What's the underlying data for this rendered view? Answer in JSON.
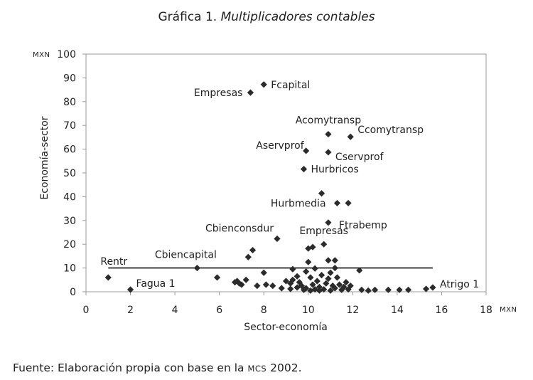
{
  "chart_data": {
    "type": "scatter",
    "title_prefix": "Gráfica 1.",
    "title_italic": "Multiplicadores contables",
    "xlabel": "Sector-economía",
    "ylabel": "Economía-sector",
    "x_unit": "MXN",
    "y_unit": "MXN",
    "xlim": [
      0,
      18
    ],
    "ylim": [
      0,
      100
    ],
    "x_ticks": [
      "0",
      "2",
      "4",
      "6",
      "8",
      "10",
      "12",
      "14",
      "16",
      "18"
    ],
    "y_ticks": [
      "0",
      "10",
      "20",
      "30",
      "40",
      "50",
      "60",
      "70",
      "80",
      "90",
      "100"
    ],
    "grid": false,
    "reference_line": {
      "y": 10,
      "x_from": 1,
      "x_to": 15.6
    },
    "labeled_points": [
      {
        "label": "Fcapital",
        "x": 8.0,
        "y": 87.2
      },
      {
        "label": "Empresas",
        "x": 7.4,
        "y": 83.8
      },
      {
        "label": "Acomytransp",
        "x": 10.9,
        "y": 66.3
      },
      {
        "label": "Ccomytransp",
        "x": 11.9,
        "y": 65.2
      },
      {
        "label": "Aservprof",
        "x": 9.9,
        "y": 59.3
      },
      {
        "label": "Cservprof",
        "x": 10.9,
        "y": 58.7
      },
      {
        "label": "Hurbricos",
        "x": 9.8,
        "y": 51.6
      },
      {
        "label": "Hurbmedia",
        "x": 10.6,
        "y": 41.4
      },
      {
        "label": "Ftrabemp",
        "x": 10.9,
        "y": 29.1
      },
      {
        "label": "Cbienconsdur",
        "x": 8.6,
        "y": 22.3
      },
      {
        "label": "Empresas",
        "x": 10.7,
        "y": 20.0
      },
      {
        "label": "Cbiencapital",
        "x": 5.0,
        "y": 10.0
      },
      {
        "label": "Rentr",
        "x": 1.0,
        "y": 6.0
      },
      {
        "label": "Fagua 1",
        "x": 2.0,
        "y": 0.9
      },
      {
        "label": "Atrigo 1",
        "x": 15.6,
        "y": 1.8
      }
    ],
    "points": [
      [
        11.3,
        37.3
      ],
      [
        11.8,
        37.3
      ],
      [
        7.5,
        17.5
      ],
      [
        7.3,
        14.6
      ],
      [
        10.0,
        18.2
      ],
      [
        10.2,
        18.8
      ],
      [
        10.9,
        13.2
      ],
      [
        11.2,
        13.2
      ],
      [
        11.2,
        10.0
      ],
      [
        12.3,
        9.0
      ],
      [
        5.9,
        6.0
      ],
      [
        6.7,
        4.0
      ],
      [
        6.9,
        3.5
      ],
      [
        6.8,
        4.5
      ],
      [
        7.2,
        5.0
      ],
      [
        7.0,
        3.0
      ],
      [
        7.7,
        2.5
      ],
      [
        8.0,
        8.0
      ],
      [
        8.1,
        3.0
      ],
      [
        8.4,
        2.5
      ],
      [
        8.8,
        1.5
      ],
      [
        9.0,
        4.5
      ],
      [
        9.2,
        3.5
      ],
      [
        9.3,
        5.0
      ],
      [
        9.3,
        9.5
      ],
      [
        9.5,
        6.5
      ],
      [
        9.6,
        4.0
      ],
      [
        9.7,
        2.5
      ],
      [
        9.9,
        1.5
      ],
      [
        9.9,
        8.5
      ],
      [
        10.0,
        12.5
      ],
      [
        10.1,
        6.0
      ],
      [
        10.2,
        3.0
      ],
      [
        10.3,
        1.0
      ],
      [
        10.3,
        9.8
      ],
      [
        10.4,
        4.5
      ],
      [
        10.5,
        2.0
      ],
      [
        10.6,
        7.0
      ],
      [
        10.7,
        1.0
      ],
      [
        10.8,
        3.5
      ],
      [
        10.9,
        5.5
      ],
      [
        11.0,
        0.5
      ],
      [
        11.0,
        8.0
      ],
      [
        11.1,
        2.5
      ],
      [
        11.2,
        1.5
      ],
      [
        11.3,
        6.0
      ],
      [
        11.4,
        3.0
      ],
      [
        11.5,
        0.8
      ],
      [
        11.6,
        2.0
      ],
      [
        11.7,
        4.0
      ],
      [
        11.8,
        1.0
      ],
      [
        11.9,
        2.5
      ],
      [
        9.2,
        1.2
      ],
      [
        9.5,
        1.8
      ],
      [
        9.8,
        0.8
      ],
      [
        10.1,
        0.5
      ],
      [
        10.5,
        0.5
      ],
      [
        12.4,
        0.8
      ],
      [
        12.7,
        0.5
      ],
      [
        13.0,
        0.8
      ],
      [
        13.6,
        0.8
      ],
      [
        14.1,
        0.8
      ],
      [
        14.5,
        0.8
      ],
      [
        15.3,
        1.2
      ]
    ]
  },
  "source": {
    "prefix": "Fuente: Elaboración propia con base en la ",
    "acronym": "MCS",
    "suffix": " 2002."
  }
}
